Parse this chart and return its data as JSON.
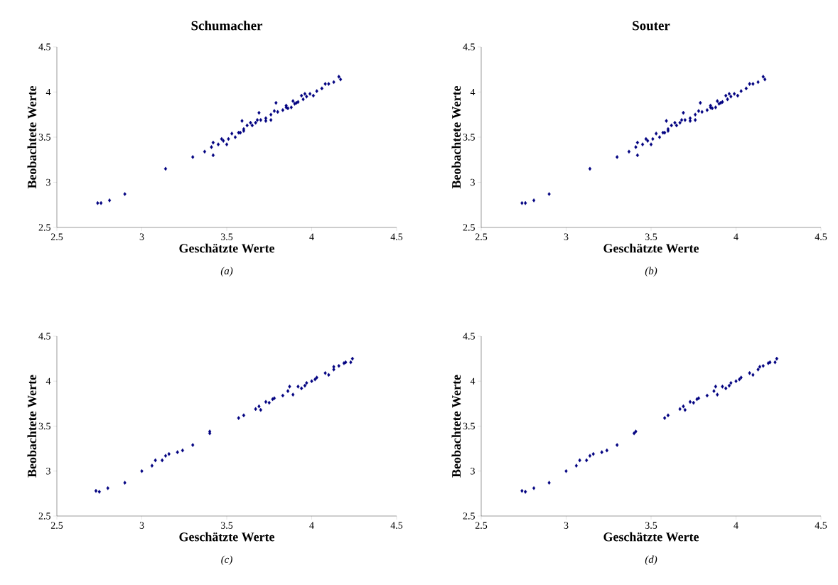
{
  "chart_data": [
    {
      "type": "scatter",
      "title": "Schumacher",
      "xlabel": "Geschätzte Werte",
      "ylabel": "Beobachtete Werte",
      "annotations": [
        "*(a)*"
      ],
      "marker": "diamond",
      "xlim": [
        2.5,
        4.5
      ],
      "ylim": [
        2.5,
        4.5
      ],
      "xticks": [
        2.5,
        3,
        3.5,
        4,
        4.5
      ],
      "yticks": [
        2.5,
        3,
        3.5,
        4,
        4.5
      ],
      "series": [
        {
          "color": "#000080",
          "x": [
            2.74,
            2.76,
            2.81,
            2.9,
            3.14,
            3.3,
            3.37,
            3.42,
            3.41,
            3.42,
            3.45,
            3.48,
            3.5,
            3.51,
            3.53,
            3.55,
            3.58,
            3.59,
            3.6,
            3.62,
            3.65,
            3.67,
            3.69,
            3.7,
            3.73,
            3.76,
            3.76,
            3.78,
            3.79,
            3.83,
            3.85,
            3.88,
            3.89,
            3.92,
            3.94,
            3.96,
            3.99,
            4.01,
            4.03,
            4.06,
            4.08,
            4.1,
            4.13,
            4.16,
            4.17,
            3.85,
            3.9,
            3.95,
            3.97,
            3.91,
            3.86,
            3.8,
            3.73,
            3.68,
            3.64,
            3.6,
            3.57,
            3.47
          ],
          "values": [
            2.77,
            2.77,
            2.8,
            2.87,
            3.15,
            3.28,
            3.34,
            3.3,
            3.39,
            3.44,
            3.42,
            3.46,
            3.42,
            3.48,
            3.54,
            3.5,
            3.55,
            3.68,
            3.59,
            3.63,
            3.63,
            3.66,
            3.77,
            3.69,
            3.71,
            3.75,
            3.69,
            3.79,
            3.88,
            3.8,
            3.85,
            3.83,
            3.9,
            3.89,
            3.96,
            3.98,
            3.98,
            3.96,
            4.01,
            4.04,
            4.09,
            4.09,
            4.11,
            4.17,
            4.14,
            3.83,
            3.87,
            3.92,
            3.95,
            3.88,
            3.82,
            3.78,
            3.68,
            3.69,
            3.66,
            3.57,
            3.55,
            3.48
          ]
        }
      ]
    },
    {
      "type": "scatter",
      "title": "Souter",
      "xlabel": "Geschätzte Werte",
      "ylabel": "Beobachtete Werte",
      "annotations": [
        "*(b)*"
      ],
      "marker": "diamond",
      "xlim": [
        2.5,
        4.5
      ],
      "ylim": [
        2.5,
        4.5
      ],
      "xticks": [
        2.5,
        3,
        3.5,
        4,
        4.5
      ],
      "yticks": [
        2.5,
        3,
        3.5,
        4,
        4.5
      ],
      "series": [
        {
          "color": "#000080",
          "x": [
            2.74,
            2.76,
            2.81,
            2.9,
            3.14,
            3.3,
            3.37,
            3.42,
            3.41,
            3.42,
            3.45,
            3.48,
            3.5,
            3.51,
            3.53,
            3.55,
            3.58,
            3.59,
            3.6,
            3.62,
            3.65,
            3.67,
            3.69,
            3.7,
            3.73,
            3.76,
            3.76,
            3.78,
            3.79,
            3.83,
            3.85,
            3.88,
            3.89,
            3.92,
            3.94,
            3.96,
            3.99,
            4.01,
            4.03,
            4.06,
            4.08,
            4.1,
            4.13,
            4.16,
            4.17,
            3.85,
            3.9,
            3.95,
            3.97,
            3.91,
            3.86,
            3.8,
            3.73,
            3.68,
            3.64,
            3.6,
            3.57,
            3.47
          ],
          "values": [
            2.77,
            2.77,
            2.8,
            2.87,
            3.15,
            3.28,
            3.34,
            3.3,
            3.39,
            3.44,
            3.42,
            3.46,
            3.42,
            3.48,
            3.54,
            3.5,
            3.55,
            3.68,
            3.59,
            3.63,
            3.63,
            3.66,
            3.77,
            3.69,
            3.71,
            3.75,
            3.69,
            3.79,
            3.88,
            3.8,
            3.85,
            3.83,
            3.9,
            3.89,
            3.96,
            3.98,
            3.98,
            3.96,
            4.01,
            4.04,
            4.09,
            4.09,
            4.11,
            4.17,
            4.14,
            3.83,
            3.87,
            3.92,
            3.95,
            3.88,
            3.82,
            3.78,
            3.68,
            3.69,
            3.66,
            3.57,
            3.55,
            3.48
          ]
        }
      ]
    },
    {
      "type": "scatter",
      "xlabel": "Geschätzte Werte",
      "ylabel": "Beobachtete Werte",
      "annotations": [
        "*(c)*"
      ],
      "marker": "diamond",
      "xlim": [
        2.5,
        4.5
      ],
      "ylim": [
        2.5,
        4.5
      ],
      "xticks": [
        2.5,
        3,
        3.5,
        4,
        4.5
      ],
      "yticks": [
        2.5,
        3,
        3.5,
        4,
        4.5
      ],
      "series": [
        {
          "color": "#000080",
          "x": [
            2.73,
            2.75,
            2.8,
            2.9,
            3.0,
            3.06,
            3.08,
            3.12,
            3.14,
            3.16,
            3.21,
            3.24,
            3.3,
            3.4,
            3.4,
            3.57,
            3.6,
            3.67,
            3.69,
            3.7,
            3.73,
            3.75,
            3.77,
            3.78,
            3.83,
            3.86,
            3.87,
            3.89,
            3.92,
            3.94,
            3.96,
            3.97,
            4.0,
            4.02,
            4.03,
            4.08,
            4.1,
            4.13,
            4.13,
            4.16,
            4.19,
            4.2,
            4.23,
            4.24
          ],
          "values": [
            2.78,
            2.77,
            2.81,
            2.87,
            3.0,
            3.06,
            3.12,
            3.12,
            3.17,
            3.19,
            3.21,
            3.23,
            3.29,
            3.42,
            3.44,
            3.59,
            3.62,
            3.69,
            3.72,
            3.68,
            3.77,
            3.76,
            3.8,
            3.81,
            3.84,
            3.89,
            3.94,
            3.85,
            3.94,
            3.92,
            3.95,
            3.98,
            4.0,
            4.02,
            4.04,
            4.09,
            4.07,
            4.13,
            4.16,
            4.17,
            4.2,
            4.21,
            4.21,
            4.25
          ]
        }
      ]
    },
    {
      "type": "scatter",
      "xlabel": "Geschätzte Werte",
      "ylabel": "Beobachtete Werte",
      "annotations": [
        "*(d)*"
      ],
      "marker": "diamond",
      "xlim": [
        2.5,
        4.5
      ],
      "ylim": [
        2.5,
        4.5
      ],
      "xticks": [
        2.5,
        3,
        3.5,
        4,
        4.5
      ],
      "yticks": [
        2.5,
        3,
        3.5,
        4,
        4.5
      ],
      "series": [
        {
          "color": "#000080",
          "x": [
            2.74,
            2.76,
            2.81,
            2.9,
            3.0,
            3.06,
            3.08,
            3.12,
            3.14,
            3.16,
            3.21,
            3.24,
            3.3,
            3.4,
            3.41,
            3.58,
            3.6,
            3.67,
            3.69,
            3.7,
            3.73,
            3.75,
            3.77,
            3.78,
            3.83,
            3.87,
            3.88,
            3.89,
            3.92,
            3.94,
            3.96,
            3.97,
            4.0,
            4.02,
            4.03,
            4.08,
            4.1,
            4.13,
            4.14,
            4.16,
            4.19,
            4.2,
            4.23,
            4.24
          ],
          "values": [
            2.78,
            2.77,
            2.81,
            2.87,
            3.0,
            3.06,
            3.12,
            3.12,
            3.17,
            3.19,
            3.21,
            3.23,
            3.29,
            3.42,
            3.44,
            3.59,
            3.62,
            3.69,
            3.72,
            3.68,
            3.77,
            3.76,
            3.8,
            3.81,
            3.84,
            3.89,
            3.94,
            3.85,
            3.94,
            3.92,
            3.95,
            3.98,
            4.0,
            4.02,
            4.04,
            4.09,
            4.07,
            4.13,
            4.16,
            4.17,
            4.2,
            4.21,
            4.21,
            4.25
          ]
        }
      ]
    }
  ]
}
